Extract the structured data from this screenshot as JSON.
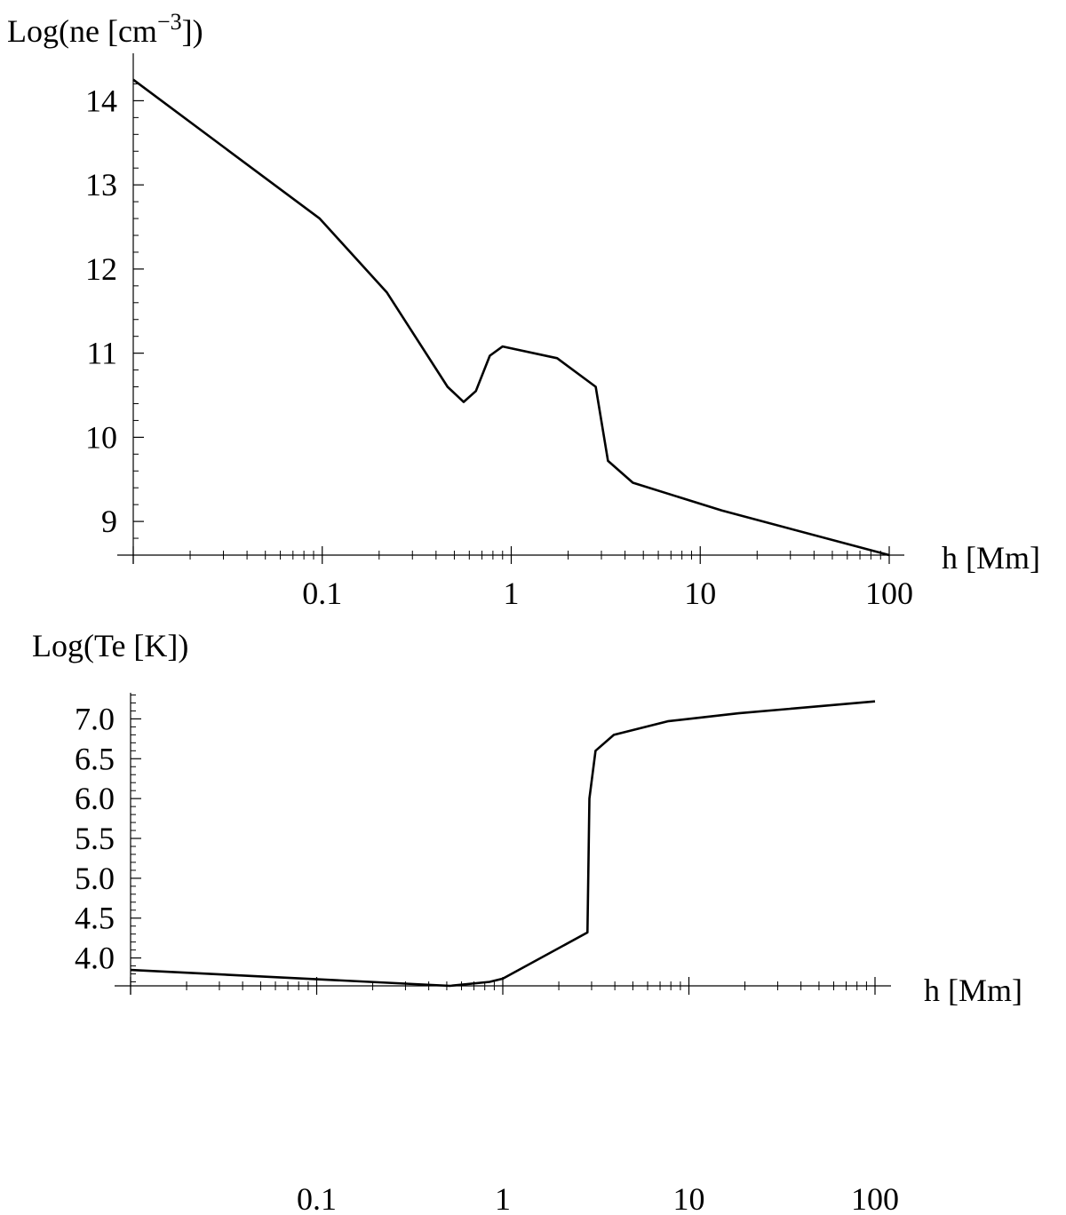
{
  "chart_data": [
    {
      "type": "line",
      "xscale": "log",
      "xlabel": "h [Mm]",
      "ylabel": "Log(ne [cm",
      "ylabel_sup": "−3",
      "ylabel_tail": "])",
      "xlim": [
        0.01,
        100
      ],
      "ylim": [
        8.6,
        14.3
      ],
      "xticks": [
        0.1,
        1,
        10,
        100
      ],
      "xtick_labels": [
        "0.1",
        "1",
        "10",
        "100"
      ],
      "yticks": [
        9,
        10,
        11,
        12,
        13,
        14
      ],
      "ytick_labels": [
        "9",
        "10",
        "11",
        "12",
        "13",
        "14"
      ],
      "grid": false,
      "series": [
        {
          "x": [
            0.01,
            0.097,
            0.22,
            0.46,
            0.56,
            0.65,
            0.77,
            0.9,
            1.75,
            2.8,
            3.25,
            4.4,
            13,
            100
          ],
          "y": [
            14.25,
            12.6,
            11.72,
            10.6,
            10.42,
            10.55,
            10.97,
            11.08,
            10.94,
            10.6,
            9.72,
            9.46,
            9.13,
            8.6
          ]
        }
      ]
    },
    {
      "type": "line",
      "xscale": "log",
      "xlabel": "h [Mm]",
      "ylabel": "Log(Te [K])",
      "xlim": [
        0.01,
        100
      ],
      "ylim": [
        3.65,
        7.35
      ],
      "xticks": [
        0.1,
        1,
        10,
        100
      ],
      "xtick_labels": [
        "0.1",
        "1",
        "10",
        "100"
      ],
      "yticks": [
        4.0,
        4.5,
        5.0,
        5.5,
        6.0,
        6.5,
        7.0
      ],
      "ytick_labels": [
        "4.0",
        "4.5",
        "5.0",
        "5.5",
        "6.0",
        "6.5",
        "7.0"
      ],
      "grid": false,
      "series": [
        {
          "x": [
            0.01,
            0.52,
            0.85,
            1.0,
            2.85,
            2.92,
            3.15,
            3.95,
            7.7,
            18.5,
            100
          ],
          "y": [
            3.85,
            3.65,
            3.7,
            3.74,
            4.32,
            6.0,
            6.6,
            6.8,
            6.97,
            7.07,
            7.22
          ]
        }
      ]
    }
  ]
}
